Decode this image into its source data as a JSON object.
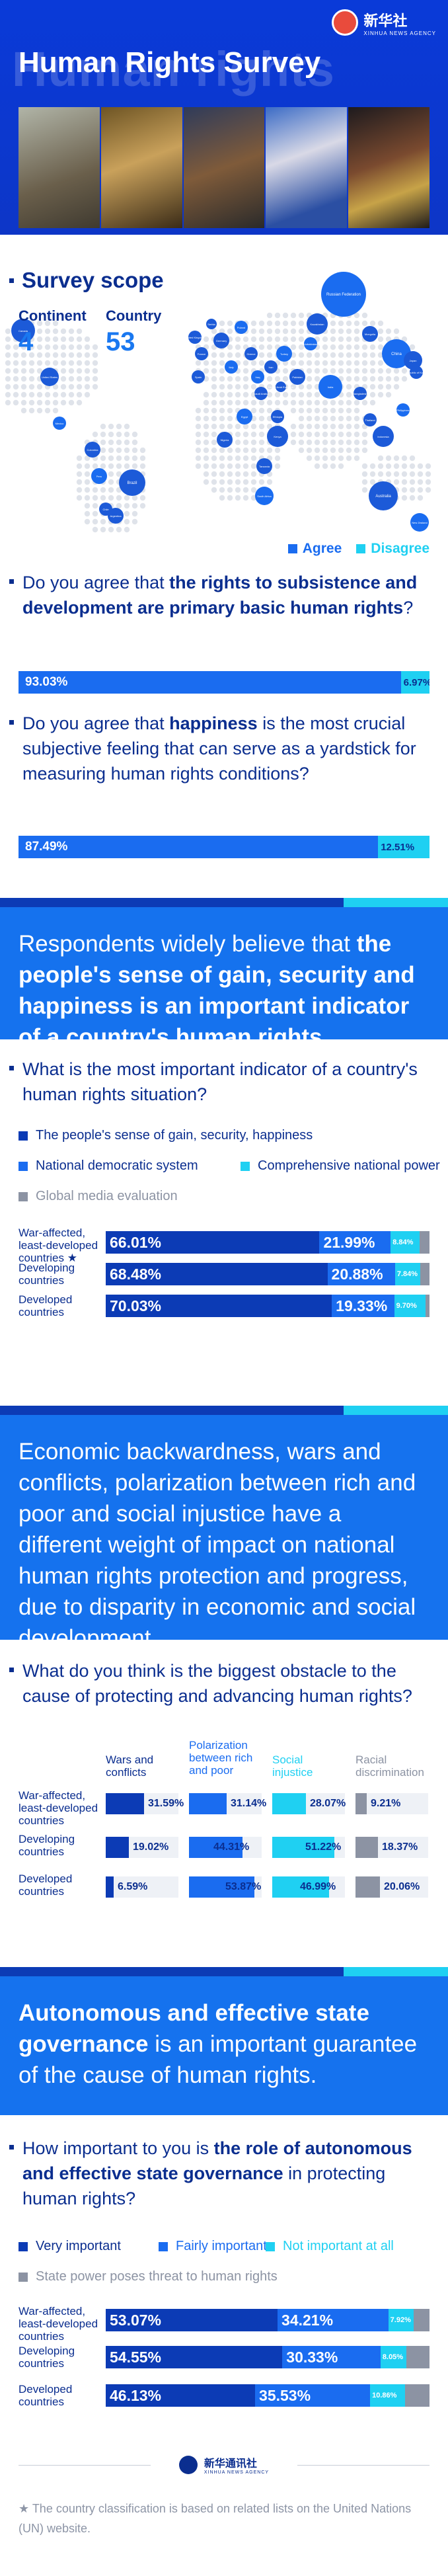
{
  "header": {
    "logo_cn": "新华社",
    "logo_en": "XINHUA NEWS AGENCY",
    "ghost_text": "Human rights",
    "title": "Human Rights Survey"
  },
  "scope": {
    "title": "Survey scope",
    "continent_label": "Continent",
    "continent_value": "4",
    "country_label": "Country",
    "country_value": "53",
    "legend_agree": "Agree",
    "legend_disagree": "Disagree",
    "map_labels": [
      "Russian Federation",
      "Kazakhstan",
      "Mongolia",
      "China",
      "Japan",
      "Republic of Korea",
      "Uzbekistan",
      "Pakistan",
      "Iran",
      "Iraq",
      "Saudi Arabia",
      "United Arab Emirates",
      "India",
      "Bangladesh",
      "Thailand",
      "Philippines",
      "Indonesia",
      "Australia",
      "New Zealand",
      "Brazil",
      "Argentina",
      "Peru",
      "Chile",
      "Colombia",
      "Mexico",
      "United States",
      "Canada",
      "Egypt",
      "Nigeria",
      "Kenya",
      "South Africa",
      "Ethiopia",
      "Tanzania",
      "Turkey",
      "Germany",
      "France",
      "Italy",
      "Spain",
      "United Kingdom",
      "Poland",
      "Greece",
      "Serbia"
    ]
  },
  "q1": {
    "pre": "Do you agree that ",
    "bold": "the rights to subsistence and development are primary basic human rights",
    "post": "?",
    "agree": "93.03%",
    "disagree": "6.97%"
  },
  "q2": {
    "pre": "Do you agree that ",
    "bold": "happiness",
    "post": " is the most crucial subjective feeling that can serve as a yardstick for measuring human rights conditions?",
    "agree": "87.49%",
    "disagree": "12.51%"
  },
  "band1": {
    "pre": "Respondents widely believe that ",
    "bold": "the people's sense of gain, security and happiness is an important indicator of a country's human rights situation",
    "post": "."
  },
  "q3": {
    "text": "What is the most important indicator of a country's human rights situation?",
    "legend": [
      "The people's sense of gain, security, happiness",
      "National democratic system",
      "Comprehensive national power",
      "Global media evaluation"
    ],
    "rows": [
      {
        "label": "War-affected, least-developed countries ★",
        "v1": "66.01%",
        "v2": "21.99%",
        "v3": "8.84%"
      },
      {
        "label": "Developing countries",
        "v1": "68.48%",
        "v2": "20.88%",
        "v3": "7.84%"
      },
      {
        "label": "Developed countries",
        "v1": "70.03%",
        "v2": "19.33%",
        "v3": "9.70%"
      }
    ]
  },
  "band2": {
    "text": "Economic backwardness, wars and conflicts, polarization between rich and poor and social injustice have a different weight of impact on national human rights protection and progress, due to disparity in economic and social development."
  },
  "q4": {
    "text": "What do you think is the biggest obstacle to the cause of protecting and advancing human rights?",
    "cols": [
      "Wars and conflicts",
      "Polarization between rich and poor",
      "Social injustice",
      "Racial discrimination"
    ],
    "rows": [
      {
        "label": "War-affected, least-developed countries",
        "vals": [
          "31.59%",
          "31.14%",
          "28.07%",
          "9.21%"
        ]
      },
      {
        "label": "Developing countries",
        "vals": [
          "19.02%",
          "44.31%",
          "51.22%",
          "18.37%"
        ]
      },
      {
        "label": "Developed countries",
        "vals": [
          "6.59%",
          "53.87%",
          "46.99%",
          "20.06%"
        ]
      }
    ]
  },
  "band3": {
    "bold": "Autonomous and effective state governance",
    "post": " is an important guarantee of the cause of human rights."
  },
  "q5": {
    "pre": "How important to you is ",
    "bold": "the role of autonomous and effective state governance",
    "post": " in protecting human rights?",
    "legend": [
      "Very important",
      "Fairly important",
      "Not important at all",
      "State power poses threat to human rights"
    ],
    "rows": [
      {
        "label": "War-affected, least-developed countries",
        "v1": "53.07%",
        "v2": "34.21%",
        "v3": "7.92%"
      },
      {
        "label": "Developing countries",
        "v1": "54.55%",
        "v2": "30.33%",
        "v3": "8.05%"
      },
      {
        "label": "Developed countries",
        "v1": "46.13%",
        "v2": "35.53%",
        "v3": "10.86%"
      }
    ]
  },
  "footer": {
    "logo_cn": "新华通讯社",
    "logo_en": "XINHUA NEWS AGENCY",
    "note": "★ The country classification is based on related lists on the United Nations (UN) website."
  },
  "colors": {
    "navy": "#0b2e8f",
    "blue": "#1a6cf0",
    "royal": "#0c3bb5",
    "cyan": "#1fd0f2",
    "gray": "#8c93a3",
    "band": "#1572ee"
  },
  "percent_values": {
    "q1": [
      93.03,
      6.97
    ],
    "q2": [
      87.49,
      12.51
    ],
    "q3": [
      [
        66.01,
        21.99,
        8.84,
        3.16
      ],
      [
        68.48,
        20.88,
        7.84,
        2.8
      ],
      [
        70.03,
        19.33,
        9.7,
        0.94
      ]
    ],
    "q4": [
      [
        31.59,
        31.14,
        28.07,
        9.21
      ],
      [
        19.02,
        44.31,
        51.22,
        18.37
      ],
      [
        6.59,
        53.87,
        46.99,
        20.06
      ]
    ],
    "q5": [
      [
        53.07,
        34.21,
        7.92,
        4.8
      ],
      [
        54.55,
        30.33,
        8.05,
        7.07
      ],
      [
        46.13,
        35.53,
        10.86,
        7.48
      ]
    ]
  }
}
